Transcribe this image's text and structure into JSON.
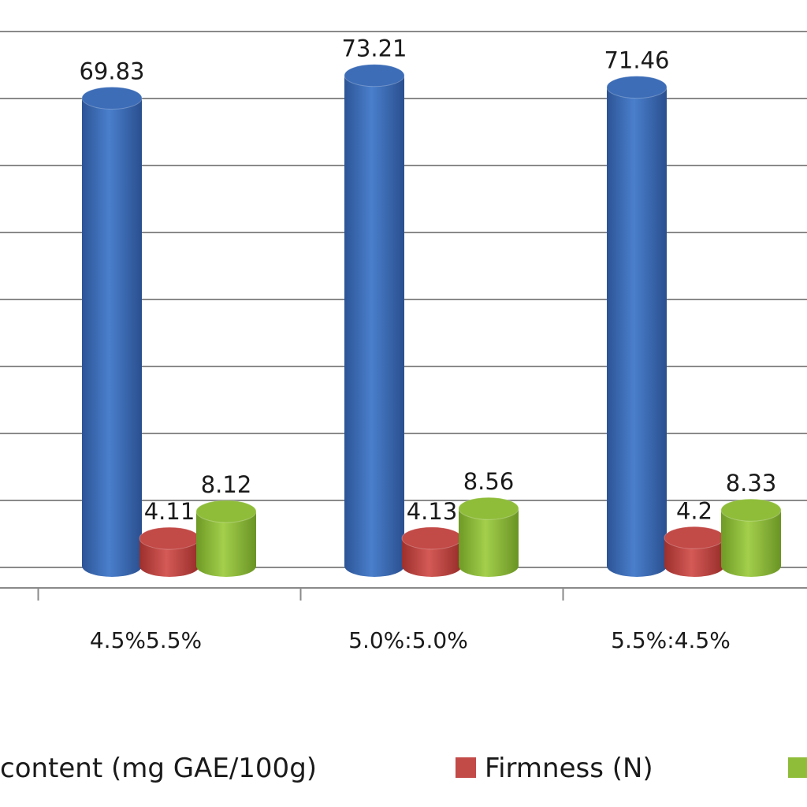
{
  "chart_data": {
    "type": "bar",
    "style": "3d-cylinder",
    "categories": [
      "4.5%5.5%",
      "5.0%:5.0%",
      "5.5%:4.5%"
    ],
    "series": [
      {
        "name": "content (mg GAE/100g)",
        "color": "#3d6db7",
        "values": [
          69.83,
          73.21,
          71.46
        ],
        "labels": [
          "69.83",
          "73.21",
          "71.46"
        ]
      },
      {
        "name": "Firmness (N)",
        "color": "#c24a47",
        "values": [
          4.11,
          4.13,
          4.2
        ],
        "labels": [
          "4.11",
          "4.13",
          "4.2"
        ]
      },
      {
        "name": "",
        "color": "#8fbd3a",
        "values": [
          8.12,
          8.56,
          8.33
        ],
        "labels": [
          "8.12",
          "8.56",
          "8.33"
        ]
      }
    ],
    "ylim": [
      0,
      80
    ],
    "grid": true,
    "legend_position": "bottom"
  }
}
